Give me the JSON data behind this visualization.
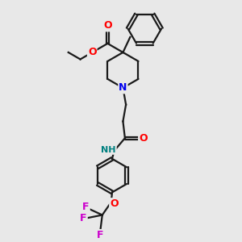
{
  "bg_color": "#e8e8e8",
  "bond_color": "#1a1a1a",
  "O_color": "#ff0000",
  "N_color": "#0000ee",
  "NH_color": "#008080",
  "F_color": "#cc00cc",
  "lw": 1.6,
  "dbo": 0.06,
  "xlim": [
    0,
    10
  ],
  "ylim": [
    0,
    12
  ]
}
